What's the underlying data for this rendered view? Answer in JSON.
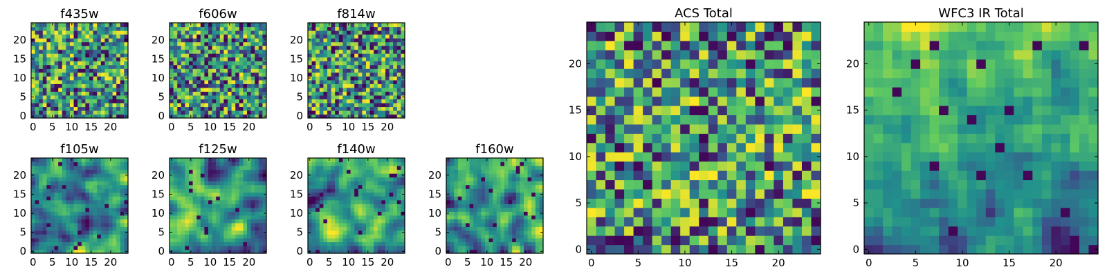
{
  "figure": {
    "description_free": true
  },
  "colormap": {
    "name": "viridis",
    "stops": [
      "#440154",
      "#3b528b",
      "#21918c",
      "#5ec962",
      "#fde725"
    ]
  },
  "chart_data": [
    {
      "id": "f435w",
      "type": "heatmap",
      "title": "f435w",
      "grid_size": [
        25,
        25
      ],
      "xlim": [
        0,
        25
      ],
      "ylim": [
        0,
        25
      ],
      "xticks": [
        0,
        5,
        10,
        15,
        20
      ],
      "yticks": [
        0,
        5,
        10,
        15,
        20
      ],
      "xtick_labels": [
        "0",
        "5",
        "10",
        "15",
        "20"
      ],
      "ytick_labels": [
        "0",
        "5",
        "10",
        "15",
        "20"
      ],
      "pattern": {
        "seed": 11,
        "smooth": 0,
        "bias": 0.62
      }
    },
    {
      "id": "f606w",
      "type": "heatmap",
      "title": "f606w",
      "grid_size": [
        25,
        25
      ],
      "xlim": [
        0,
        25
      ],
      "ylim": [
        0,
        25
      ],
      "xticks": [
        0,
        5,
        10,
        15,
        20
      ],
      "yticks": [
        0,
        5,
        10,
        15,
        20
      ],
      "xtick_labels": [
        "0",
        "5",
        "10",
        "15",
        "20"
      ],
      "ytick_labels": [
        "0",
        "5",
        "10",
        "15",
        "20"
      ],
      "pattern": {
        "seed": 23,
        "smooth": 0,
        "bias": 0.6
      }
    },
    {
      "id": "f814w",
      "type": "heatmap",
      "title": "f814w",
      "grid_size": [
        25,
        25
      ],
      "xlim": [
        0,
        25
      ],
      "ylim": [
        0,
        25
      ],
      "xticks": [
        0,
        5,
        10,
        15,
        20
      ],
      "yticks": [
        0,
        5,
        10,
        15,
        20
      ],
      "xtick_labels": [
        "0",
        "5",
        "10",
        "15",
        "20"
      ],
      "ytick_labels": [
        "0",
        "5",
        "10",
        "15",
        "20"
      ],
      "pattern": {
        "seed": 37,
        "smooth": 0,
        "bias": 0.6
      }
    },
    {
      "id": "f105w",
      "type": "heatmap",
      "title": "f105w",
      "grid_size": [
        25,
        25
      ],
      "xlim": [
        0,
        25
      ],
      "ylim": [
        0,
        25
      ],
      "xticks": [
        0,
        5,
        10,
        15,
        20
      ],
      "yticks": [
        0,
        5,
        10,
        15,
        20
      ],
      "xtick_labels": [
        "0",
        "5",
        "10",
        "15",
        "20"
      ],
      "ytick_labels": [
        "0",
        "5",
        "10",
        "15",
        "20"
      ],
      "pattern": {
        "seed": 41,
        "smooth": 2,
        "bias": 0.6
      }
    },
    {
      "id": "f125w",
      "type": "heatmap",
      "title": "f125w",
      "grid_size": [
        25,
        25
      ],
      "xlim": [
        0,
        25
      ],
      "ylim": [
        0,
        25
      ],
      "xticks": [
        0,
        5,
        10,
        15,
        20
      ],
      "yticks": [
        0,
        5,
        10,
        15,
        20
      ],
      "xtick_labels": [
        "0",
        "5",
        "10",
        "15",
        "20"
      ],
      "ytick_labels": [
        "0",
        "5",
        "10",
        "15",
        "20"
      ],
      "pattern": {
        "seed": 53,
        "smooth": 2,
        "bias": 0.62
      }
    },
    {
      "id": "f140w",
      "type": "heatmap",
      "title": "f140w",
      "grid_size": [
        25,
        25
      ],
      "xlim": [
        0,
        25
      ],
      "ylim": [
        0,
        25
      ],
      "xticks": [
        0,
        5,
        10,
        15,
        20
      ],
      "yticks": [
        0,
        5,
        10,
        15,
        20
      ],
      "xtick_labels": [
        "0",
        "5",
        "10",
        "15",
        "20"
      ],
      "ytick_labels": [
        "0",
        "5",
        "10",
        "15",
        "20"
      ],
      "pattern": {
        "seed": 67,
        "smooth": 2,
        "bias": 0.6
      }
    },
    {
      "id": "f160w",
      "type": "heatmap",
      "title": "f160w",
      "grid_size": [
        25,
        25
      ],
      "xlim": [
        0,
        25
      ],
      "ylim": [
        0,
        25
      ],
      "xticks": [
        0,
        5,
        10,
        15,
        20
      ],
      "yticks": [
        0,
        5,
        10,
        15,
        20
      ],
      "xtick_labels": [
        "0",
        "5",
        "10",
        "15",
        "20"
      ],
      "ytick_labels": [
        "0",
        "5",
        "10",
        "15",
        "20"
      ],
      "pattern": {
        "seed": 79,
        "smooth": 2,
        "bias": 0.6
      }
    },
    {
      "id": "acs-total",
      "type": "heatmap",
      "title": "ACS Total",
      "grid_size": [
        25,
        25
      ],
      "xlim": [
        0,
        25
      ],
      "ylim": [
        0,
        25
      ],
      "xticks": [
        0,
        5,
        10,
        15,
        20
      ],
      "yticks": [
        0,
        5,
        10,
        15,
        20
      ],
      "xtick_labels": [
        "0",
        "5",
        "10",
        "15",
        "20"
      ],
      "ytick_labels": [
        "0",
        "5",
        "10",
        "15",
        "20"
      ],
      "pattern": {
        "seed": 97,
        "smooth": 0,
        "bias": 0.66
      }
    },
    {
      "id": "wfc3-ir-total",
      "type": "heatmap",
      "title": "WFC3 IR Total",
      "grid_size": [
        25,
        25
      ],
      "xlim": [
        0,
        25
      ],
      "ylim": [
        0,
        25
      ],
      "xticks": [
        0,
        5,
        10,
        15,
        20
      ],
      "yticks": [
        0,
        5,
        10,
        15,
        20
      ],
      "xtick_labels": [
        "0",
        "5",
        "10",
        "15",
        "20"
      ],
      "ytick_labels": [
        "0",
        "5",
        "10",
        "15",
        "20"
      ],
      "pattern": {
        "seed": 131,
        "smooth": 1,
        "bias": 0.58,
        "vertical_gradient": 0.35
      }
    }
  ]
}
